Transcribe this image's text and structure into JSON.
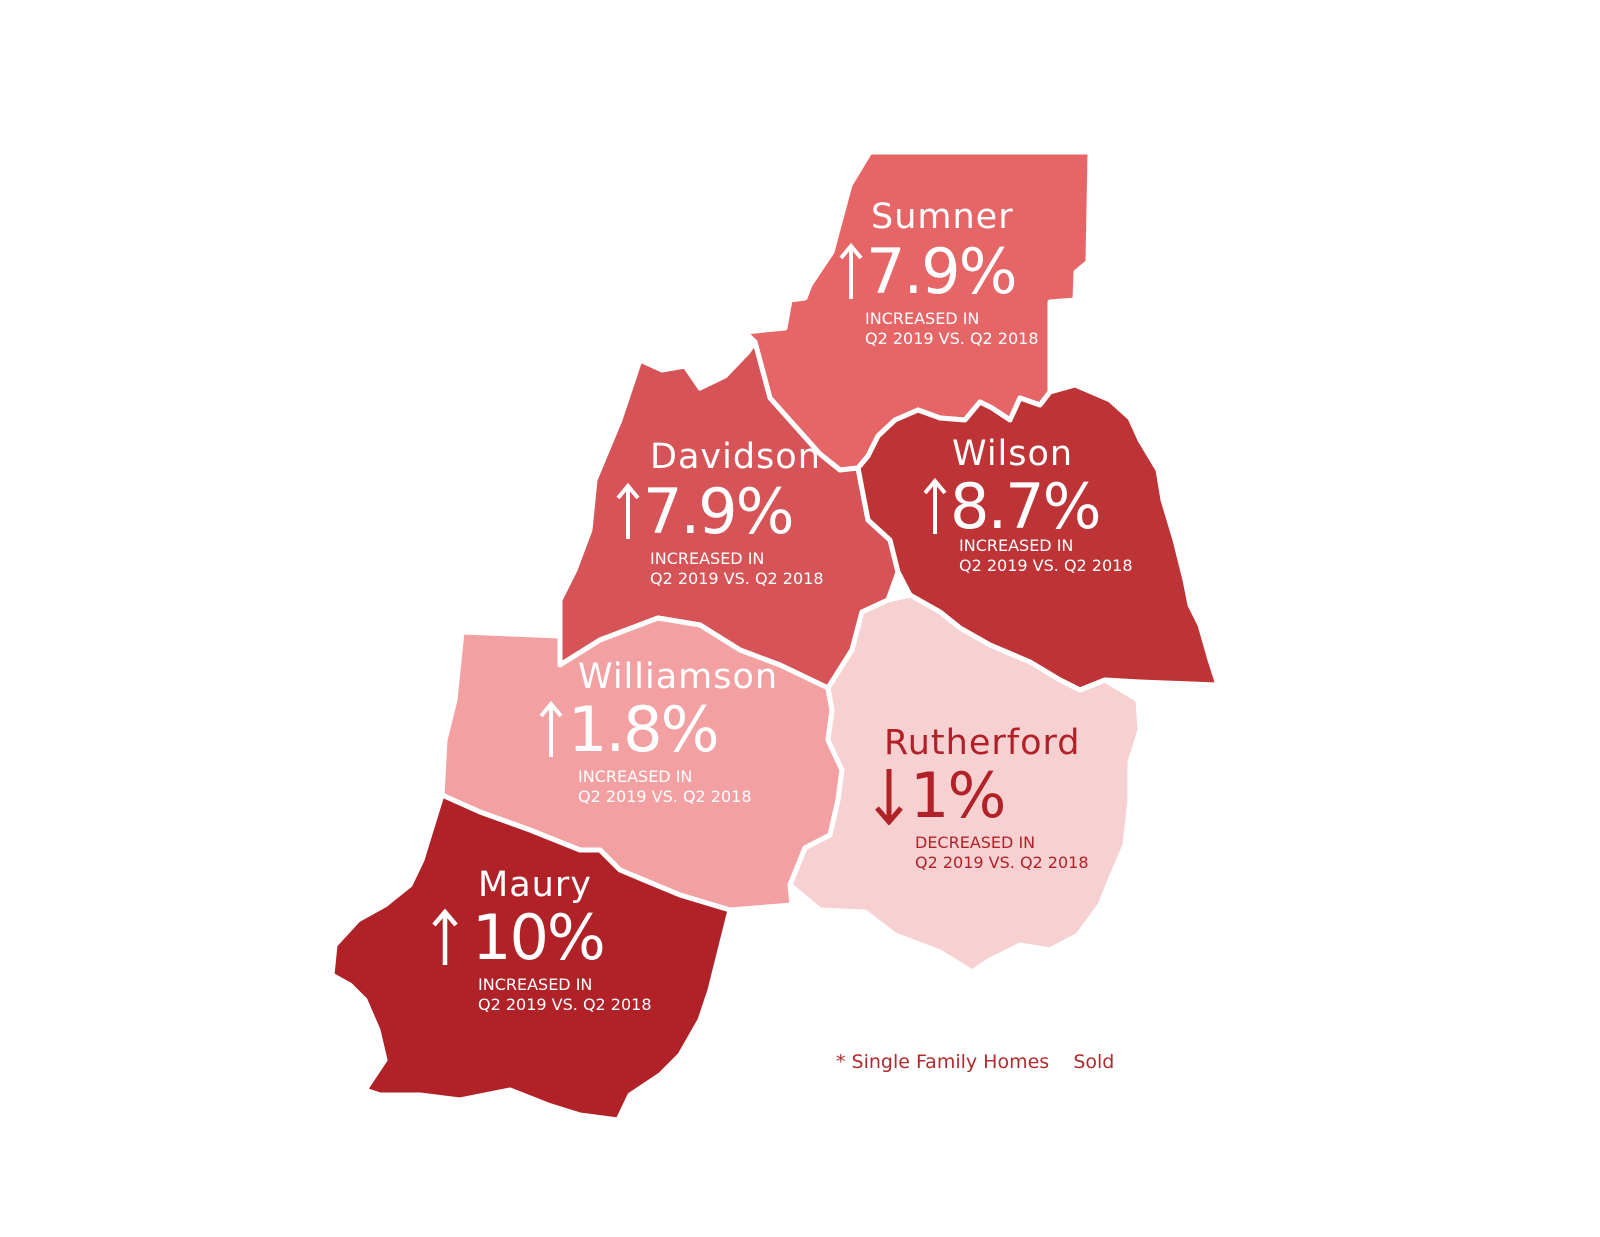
{
  "colors": {
    "sumner": "#e66668",
    "davidson": "#d65457",
    "wilson": "#bd3336",
    "williamson": "#f3a0a3",
    "rutherford": "#f7d0d1",
    "maury": "#b02228",
    "light_text": "#ffffff",
    "dark_text": "#b02228",
    "border": "#ffffff"
  },
  "counties": [
    {
      "name": "Sumner",
      "direction": "up",
      "arrow_icon": "arrow-up-icon",
      "value": "7.9%",
      "change": 7.9,
      "note_line1": "INCREASED IN",
      "note_line2": "Q2 2019 VS. Q2 2018"
    },
    {
      "name": "Davidson",
      "direction": "up",
      "arrow_icon": "arrow-up-icon",
      "value": "7.9%",
      "change": 7.9,
      "note_line1": "INCREASED IN",
      "note_line2": "Q2 2019 VS. Q2 2018"
    },
    {
      "name": "Wilson",
      "direction": "up",
      "arrow_icon": "arrow-up-icon",
      "value": "8.7%",
      "change": 8.7,
      "note_line1": "INCREASED IN",
      "note_line2": "Q2 2019 VS. Q2 2018"
    },
    {
      "name": "Williamson",
      "direction": "up",
      "arrow_icon": "arrow-up-icon",
      "value": "1.8%",
      "change": 1.8,
      "note_line1": "INCREASED IN",
      "note_line2": "Q2 2019 VS. Q2 2018"
    },
    {
      "name": "Rutherford",
      "direction": "down",
      "arrow_icon": "arrow-down-icon",
      "value": "1%",
      "change": -1,
      "note_line1": "DECREASED IN",
      "note_line2": "Q2 2019 VS. Q2 2018"
    },
    {
      "name": "Maury",
      "direction": "up",
      "arrow_icon": "arrow-up-icon",
      "value": "10%",
      "change": 10,
      "note_line1": "INCREASED IN",
      "note_line2": "Q2 2019 VS. Q2 2018"
    }
  ],
  "footnote": "* Single Family Homes    Sold"
}
